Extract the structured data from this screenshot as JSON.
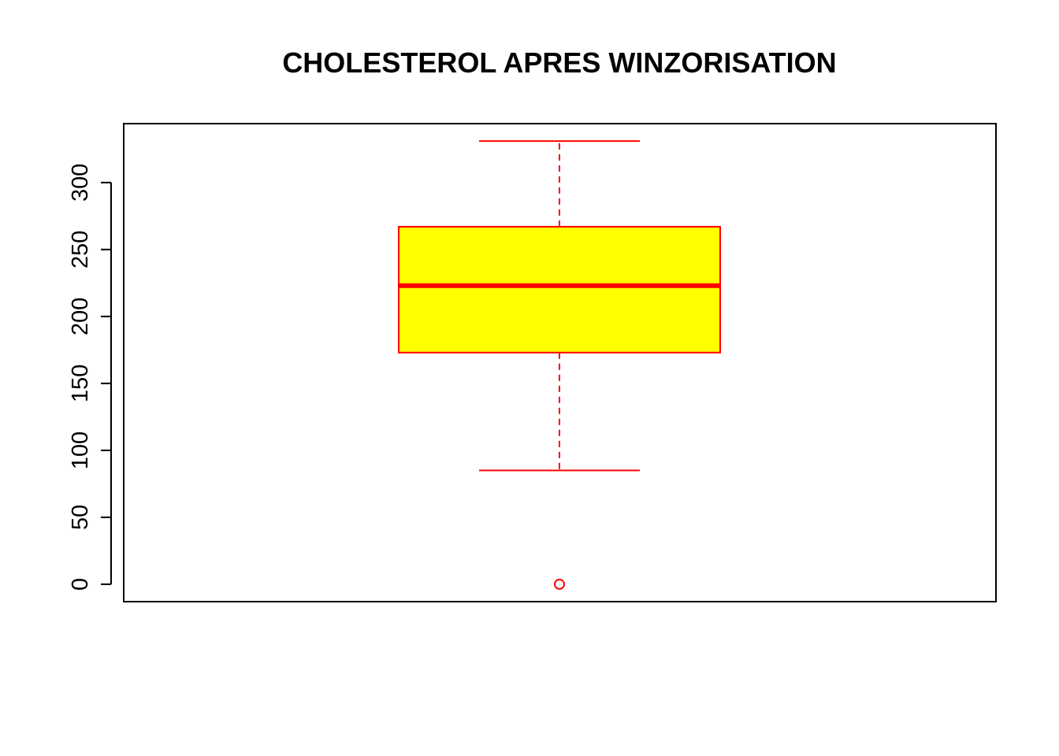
{
  "chart_data": {
    "type": "boxplot",
    "title": "CHOLESTEROL APRES WINZORISATION",
    "xlabel": "",
    "ylabel": "",
    "ylim": [
      -13,
      344
    ],
    "yticks": [
      0,
      50,
      100,
      150,
      200,
      250,
      300
    ],
    "ytick_labels": [
      "0",
      "50",
      "100",
      "150",
      "200",
      "250",
      "300"
    ],
    "box": {
      "whisker_low": 85,
      "q1": 173,
      "median": 223,
      "q3": 267,
      "whisker_high": 331,
      "outliers": [
        0
      ]
    },
    "colors": {
      "box_fill": "#ffff00",
      "box_border": "#ff0000",
      "axis": "#000000"
    },
    "grid": false,
    "legend": "none"
  }
}
